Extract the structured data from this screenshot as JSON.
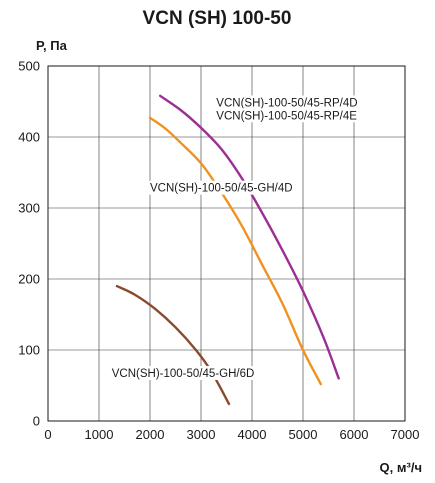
{
  "chart_data": {
    "type": "line",
    "title": "VCN (SH) 100-50",
    "ylabel": "P, Па",
    "xlabel": "Q, м³/ч",
    "xlim": [
      0,
      7000
    ],
    "ylim": [
      0,
      500
    ],
    "xticks": [
      "0",
      "1000",
      "2000",
      "3000",
      "4000",
      "5000",
      "6000",
      "7000"
    ],
    "yticks": [
      "0",
      "100",
      "200",
      "300",
      "400",
      "500"
    ],
    "grid": true,
    "series": [
      {
        "name": "VCN(SH)-100-50/45-RP/4D",
        "color": "#9b2f93",
        "x": [
          2200,
          2600,
          3000,
          3400,
          3800,
          4200,
          4600,
          5000,
          5400,
          5700
        ],
        "y": [
          458,
          438,
          413,
          383,
          342,
          293,
          240,
          183,
          118,
          60
        ]
      },
      {
        "name": "VCN(SH)-100-50/45-GH/4D",
        "color": "#f0921e",
        "x": [
          2000,
          2300,
          2600,
          3000,
          3400,
          3800,
          4200,
          4600,
          5000,
          5350
        ],
        "y": [
          427,
          412,
          392,
          363,
          322,
          275,
          220,
          165,
          100,
          52
        ]
      },
      {
        "name": "VCN(SH)-100-50/45-GH/6D",
        "color": "#8a4a2c",
        "x": [
          1350,
          1700,
          2100,
          2500,
          2900,
          3200,
          3550
        ],
        "y": [
          190,
          178,
          158,
          132,
          100,
          70,
          24
        ]
      }
    ],
    "annotations": [
      {
        "text": "VCN(SH)-100-50/45-RP/4D",
        "x": 3300,
        "y": 443
      },
      {
        "text": "VCN(SH)-100-50/45-RP/4E",
        "x": 3300,
        "y": 425
      },
      {
        "text": "VCN(SH)-100-50/45-GH/4D",
        "x": 2000,
        "y": 323
      },
      {
        "text": "VCN(SH)-100-50/45-GH/6D",
        "x": 1250,
        "y": 62
      }
    ]
  }
}
